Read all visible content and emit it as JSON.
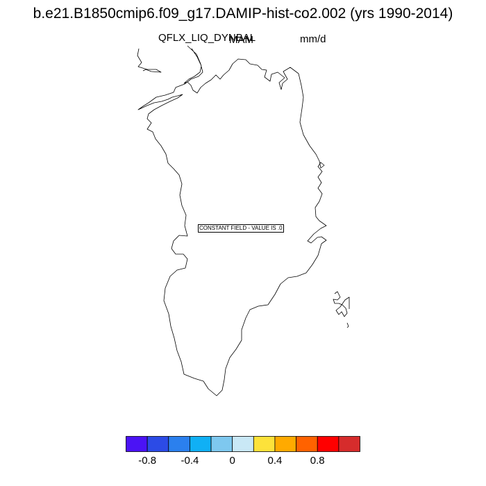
{
  "title": "b.e21.B1850cmip6.f09_g17.DAMIP-hist-co2.002 (yrs 1990-2014)",
  "variable": "QFLX_LIQ_DYNBAL",
  "season": "MAM",
  "units": "mm/d",
  "annotation": "CONSTANT FIELD - VALUE IS .0",
  "colorbar": {
    "colors": [
      "#4b13f5",
      "#2c4be6",
      "#2b80ee",
      "#10b0f5",
      "#7ec8ef",
      "#c9e8f6",
      "#fde23a",
      "#ffaa00",
      "#ff6200",
      "#ff0000",
      "#d62c2c"
    ],
    "tick_labels": [
      "-0.8",
      "-0.4",
      "0",
      "0.4",
      "0.8"
    ]
  }
}
